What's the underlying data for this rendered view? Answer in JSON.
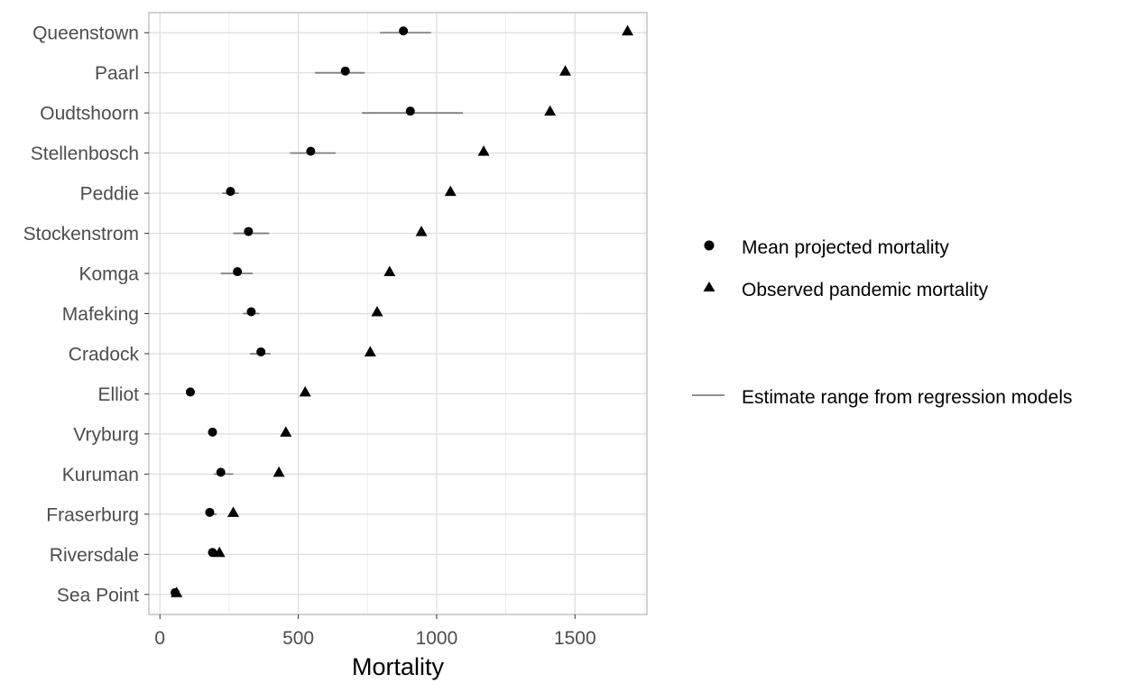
{
  "chart_data": {
    "type": "scatter",
    "xlabel": "Mortality",
    "ylabel": "",
    "xlim": [
      -40,
      1760
    ],
    "xticks": [
      0,
      500,
      1000,
      1500
    ],
    "grid": true,
    "legend_position": "right",
    "categories": [
      "Queenstown",
      "Paarl",
      "Oudtshoorn",
      "Stellenbosch",
      "Peddie",
      "Stockenstrom",
      "Komga",
      "Mafeking",
      "Cradock",
      "Elliot",
      "Vryburg",
      "Kuruman",
      "Fraserburg",
      "Riversdale",
      "Sea Point"
    ],
    "series": [
      {
        "name": "Mean projected mortality",
        "marker": "circle",
        "values": [
          880,
          670,
          905,
          545,
          255,
          320,
          280,
          330,
          365,
          110,
          190,
          220,
          180,
          190,
          55
        ]
      },
      {
        "name": "Observed pandemic mortality",
        "marker": "triangle",
        "values": [
          1690,
          1465,
          1410,
          1170,
          1050,
          945,
          830,
          785,
          760,
          525,
          455,
          430,
          265,
          215,
          60
        ]
      }
    ],
    "ranges": {
      "name": "Estimate range from regression models",
      "low": [
        795,
        560,
        730,
        470,
        225,
        265,
        220,
        300,
        325,
        100,
        180,
        195,
        170,
        180,
        45
      ],
      "high": [
        980,
        740,
        1095,
        635,
        285,
        395,
        335,
        360,
        400,
        120,
        200,
        265,
        205,
        200,
        65
      ]
    },
    "colors": {
      "points": "#000000",
      "range": "#7f7f7f",
      "grid": "#dcdcdc",
      "border": "#b3b3b3"
    }
  }
}
